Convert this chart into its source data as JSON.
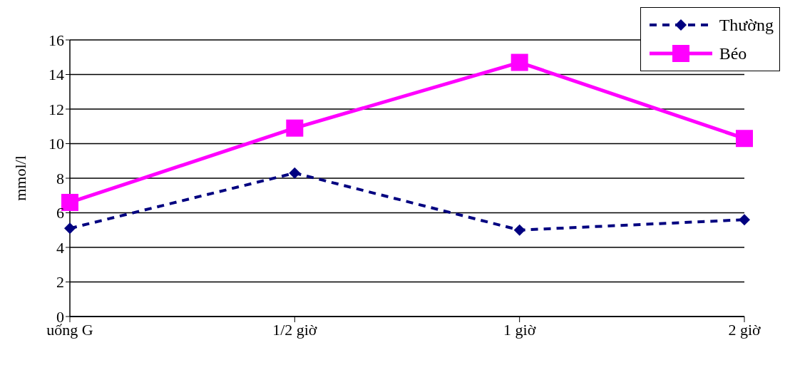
{
  "chart_data": {
    "type": "line",
    "ylabel": "mmol/l",
    "categories": [
      "uống G",
      "1/2 giờ",
      "1 giờ",
      "2 giờ"
    ],
    "series": [
      {
        "name": "Thường",
        "color": "#000080",
        "values": [
          5.1,
          8.3,
          5.0,
          5.6
        ],
        "marker": "diamond",
        "line_style": "dashed"
      },
      {
        "name": "Béo",
        "color": "#ff00ff",
        "values": [
          6.6,
          10.9,
          14.7,
          10.3
        ],
        "marker": "square",
        "line_style": "solid"
      }
    ],
    "ylim": [
      0,
      16
    ],
    "yticks": [
      0,
      2,
      4,
      6,
      8,
      10,
      12,
      14,
      16
    ],
    "grid": "y",
    "legend": "top right"
  }
}
